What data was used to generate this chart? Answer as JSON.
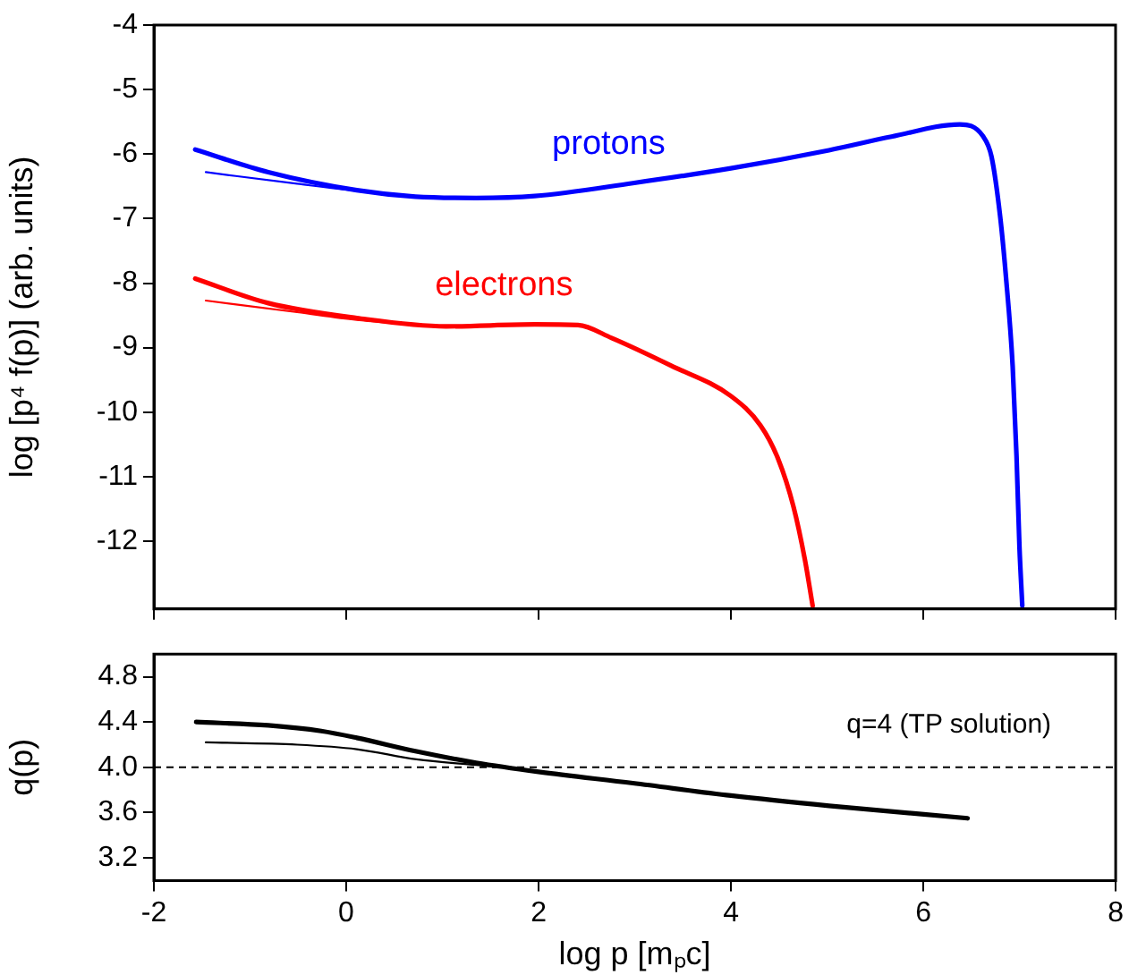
{
  "chart_data": [
    {
      "type": "line",
      "ylabel": "log [p⁴ f(p)] (arb. units)",
      "xlim": [
        -2,
        8
      ],
      "xticks": [
        -2,
        0,
        2,
        4,
        6,
        8
      ],
      "ylim": [
        -13.05,
        -4
      ],
      "yticks": [
        -4,
        -5,
        -6,
        -7,
        -8,
        -9,
        -10,
        -11,
        -12
      ],
      "tick_labels": "y",
      "grid": false,
      "legend": false,
      "marker": "none",
      "line_style": "solid",
      "series": [
        {
          "name": "protons",
          "color": "#0000ff",
          "x": [
            -1.57,
            -0.81,
            0.11,
            0.72,
            1.35,
            1.96,
            2.98,
            4.0,
            5.02,
            5.67,
            6.38,
            6.62,
            6.71,
            6.8,
            6.86,
            6.93,
            6.97,
            7.0,
            7.03
          ],
          "values": [
            -5.93,
            -6.28,
            -6.56,
            -6.66,
            -6.68,
            -6.65,
            -6.45,
            -6.22,
            -5.94,
            -5.73,
            -5.54,
            -5.72,
            -6.04,
            -6.97,
            -7.9,
            -9.29,
            -10.68,
            -12.07,
            -13.0
          ]
        },
        {
          "color": "#0000ff",
          "x": [
            -1.46,
            -0.51,
            0.11,
            0.72,
            1.35
          ],
          "values": [
            -6.28,
            -6.46,
            -6.57,
            -6.65,
            -6.68
          ]
        },
        {
          "name": "electrons",
          "color": "#ff0000",
          "x": [
            -1.57,
            -0.81,
            0.11,
            1.04,
            1.96,
            2.41,
            2.76,
            3.38,
            4.0,
            4.31,
            4.49,
            4.65,
            4.77,
            4.85
          ],
          "values": [
            -7.93,
            -8.31,
            -8.54,
            -8.67,
            -8.64,
            -8.65,
            -8.85,
            -9.28,
            -9.75,
            -10.21,
            -10.72,
            -11.46,
            -12.29,
            -13.0
          ]
        },
        {
          "color": "#ff0000",
          "x": [
            -1.46,
            -0.51,
            0.11,
            1.04
          ],
          "values": [
            -8.27,
            -8.45,
            -8.57,
            -8.67
          ]
        }
      ]
    },
    {
      "type": "line",
      "xlabel": "log p [mₚc]",
      "ylabel": "q(p)",
      "xlim": [
        -2,
        8
      ],
      "xticks": [
        -2,
        0,
        2,
        4,
        6,
        8
      ],
      "ylim": [
        3.0,
        5.0
      ],
      "yticks": [
        3.2,
        3.6,
        {
          "value": 4.0,
          "label": "4.0"
        },
        4.4,
        4.8
      ],
      "grid": false,
      "legend": false,
      "marker": "none",
      "line_style": "solid",
      "ref_lines": [
        {
          "axis": "y",
          "value": 4.0,
          "label": "q=4 (TP solution)",
          "color": "#000000",
          "line_style": "dashed"
        }
      ],
      "series": [
        {
          "color": "#000000",
          "x": [
            -1.56,
            -0.81,
            -0.26,
            0.11,
            0.73,
            1.35,
            2.0,
            2.98,
            4.0,
            5.02,
            6.46
          ],
          "values": [
            4.4,
            4.37,
            4.32,
            4.26,
            4.14,
            4.04,
            3.96,
            3.86,
            3.75,
            3.66,
            3.55
          ]
        },
        {
          "color": "#000000",
          "x": [
            -1.46,
            -0.51,
            0.11,
            0.73,
            1.35,
            1.6
          ],
          "values": [
            4.22,
            4.2,
            4.16,
            4.07,
            4.02,
            4.0
          ]
        }
      ]
    }
  ]
}
